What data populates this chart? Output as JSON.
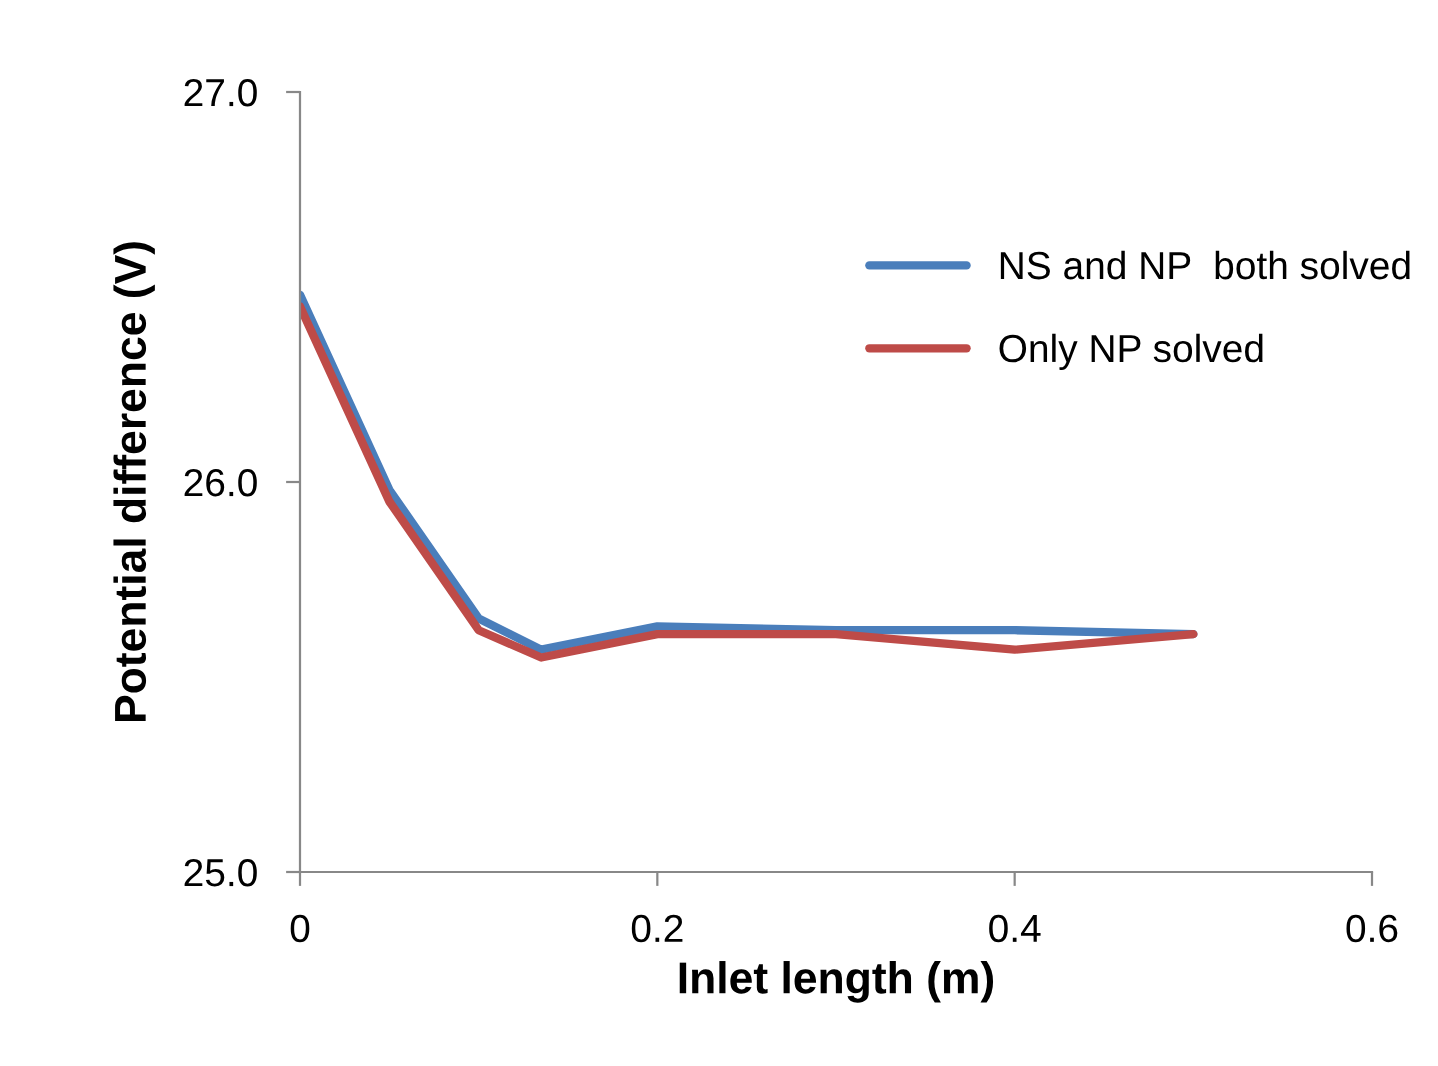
{
  "chart_data": {
    "type": "line",
    "xlabel": "Inlet length (m)",
    "ylabel": "Potential difference (V)",
    "xlim": [
      0,
      0.6
    ],
    "xticks": [
      0,
      0.2,
      0.4,
      0.6
    ],
    "ylim": [
      25,
      27
    ],
    "yticks": [
      {
        "value": 25,
        "label": "25.0"
      },
      {
        "value": 26,
        "label": "26.0"
      },
      {
        "value": 27,
        "label": "27.0"
      }
    ],
    "grid": false,
    "legend": "right",
    "marker": "none",
    "line_style": "solid",
    "series": [
      {
        "name": "NS and NP  both solved",
        "color": "#4a7ebb",
        "x": [
          0,
          0.05,
          0.1,
          0.135,
          0.2,
          0.3,
          0.4,
          0.5
        ],
        "values": [
          26.48,
          25.98,
          25.65,
          25.57,
          25.63,
          25.62,
          25.62,
          25.61
        ]
      },
      {
        "name": "Only NP solved",
        "color": "#be4b48",
        "x": [
          0,
          0.05,
          0.1,
          0.135,
          0.2,
          0.3,
          0.4,
          0.5
        ],
        "values": [
          26.45,
          25.95,
          25.62,
          25.55,
          25.61,
          25.61,
          25.57,
          25.61
        ]
      }
    ]
  }
}
